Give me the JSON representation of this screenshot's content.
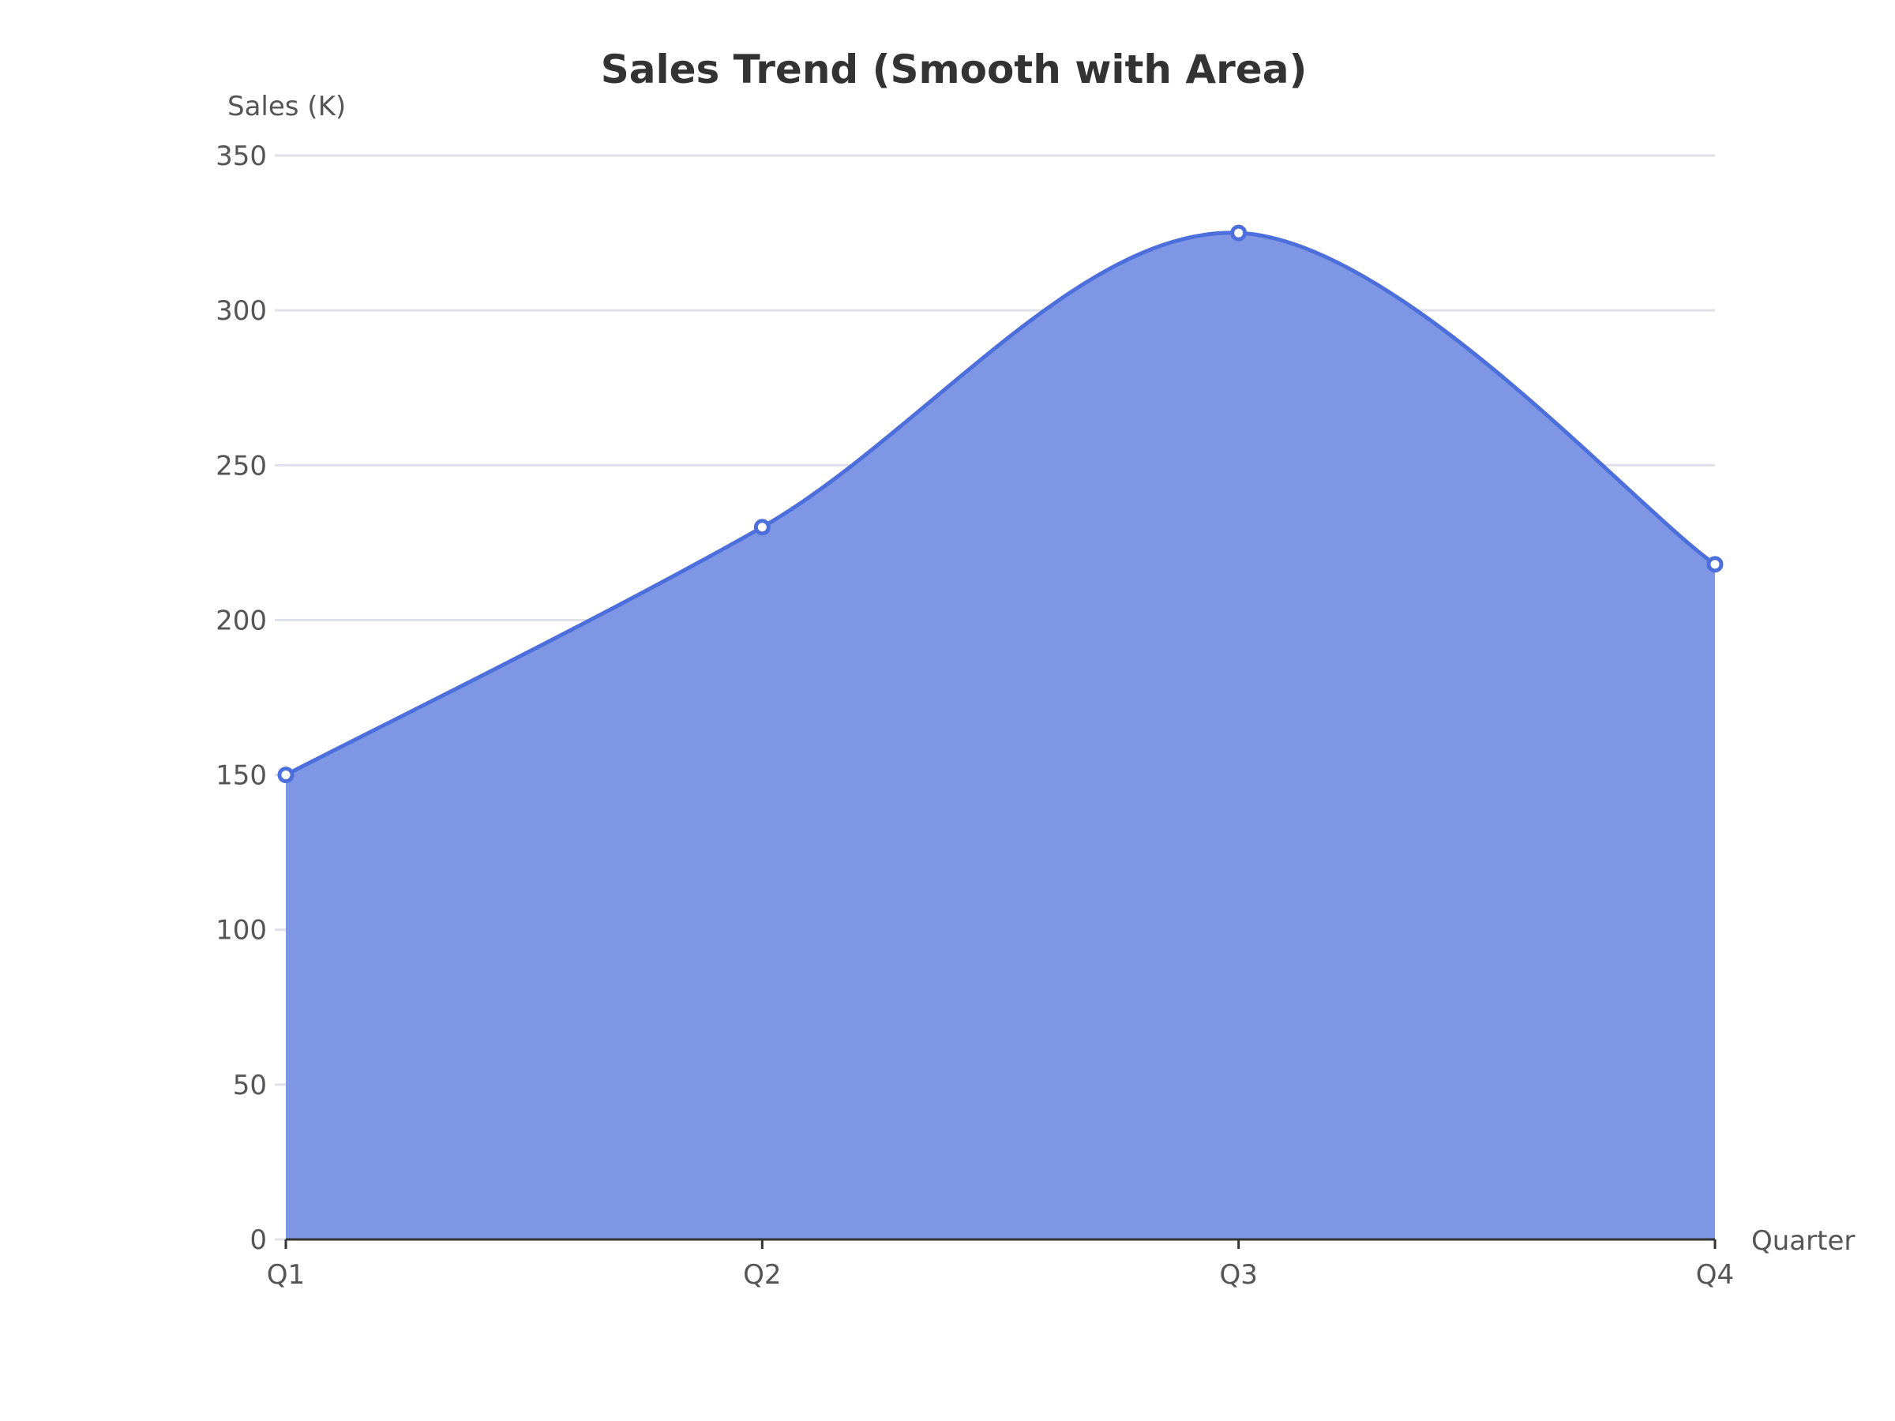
{
  "chart_data": {
    "type": "area",
    "title": "Sales Trend (Smooth with Area)",
    "xlabel": "Quarter",
    "ylabel": "Sales (K)",
    "categories": [
      "Q1",
      "Q2",
      "Q3",
      "Q4"
    ],
    "series": [
      {
        "values": [
          150,
          230,
          325,
          218
        ]
      }
    ],
    "ylim": [
      0,
      350
    ],
    "yticks": [
      0,
      50,
      100,
      150,
      200,
      250,
      300,
      350
    ],
    "grid": true,
    "smooth": true,
    "legend": "none",
    "colors": {
      "line": "#4C6FDC",
      "area": "#7F96E4",
      "grid": "#E0E0E8",
      "axis": "#333333",
      "marker_fill": "#FFFFFF"
    }
  }
}
